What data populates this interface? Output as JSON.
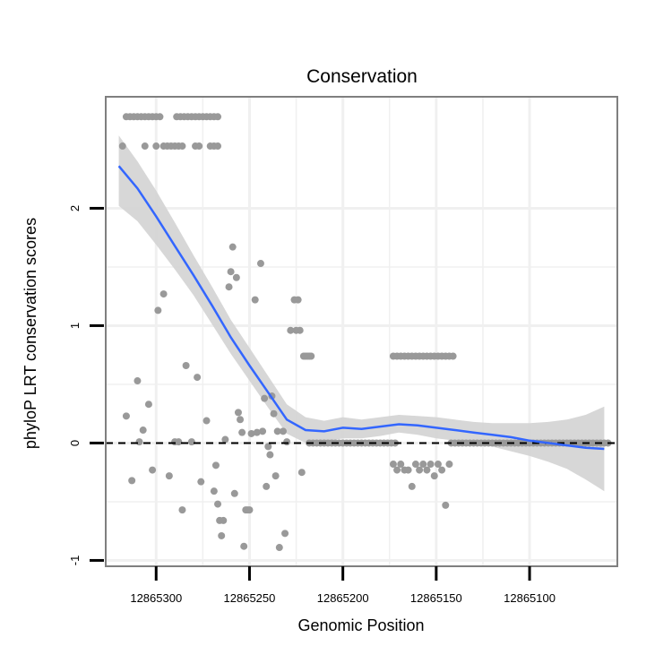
{
  "chart_data": {
    "type": "scatter",
    "title": "Conservation",
    "xlabel": "Genomic Position",
    "ylabel": "phyloP LRT conservation scores",
    "x_reversed": true,
    "xlim": [
      12865327,
      12865053
    ],
    "ylim": [
      -1.05,
      2.95
    ],
    "x_ticks": [
      12865300,
      12865250,
      12865200,
      12865150,
      12865100
    ],
    "x_tick_labels": [
      "12865300",
      "12865250",
      "12865200",
      "12865150",
      "12865100"
    ],
    "y_ticks": [
      -1,
      0,
      1,
      2
    ],
    "y_tick_labels": [
      "-1",
      "0",
      "1",
      "2"
    ],
    "grid": true,
    "reference_line": {
      "y": 0,
      "style": "dashed"
    },
    "colors": {
      "points": "#999999",
      "smooth": "#3366ff",
      "ribbon": "#d3d3d3",
      "panel_border": "#7f7f7f",
      "grid": "#f0f0f0"
    },
    "points": [
      {
        "x": 12865318,
        "y": 2.53
      },
      {
        "x": 12865316,
        "y": 2.78
      },
      {
        "x": 12865314,
        "y": 2.78
      },
      {
        "x": 12865312,
        "y": 2.78
      },
      {
        "x": 12865310,
        "y": 2.78
      },
      {
        "x": 12865308,
        "y": 2.78
      },
      {
        "x": 12865306,
        "y": 2.78
      },
      {
        "x": 12865304,
        "y": 2.78
      },
      {
        "x": 12865302,
        "y": 2.78
      },
      {
        "x": 12865300,
        "y": 2.78
      },
      {
        "x": 12865298,
        "y": 2.78
      },
      {
        "x": 12865306,
        "y": 2.53
      },
      {
        "x": 12865300,
        "y": 2.53
      },
      {
        "x": 12865296,
        "y": 2.53
      },
      {
        "x": 12865294,
        "y": 2.53
      },
      {
        "x": 12865292,
        "y": 2.53
      },
      {
        "x": 12865290,
        "y": 2.53
      },
      {
        "x": 12865288,
        "y": 2.53
      },
      {
        "x": 12865286,
        "y": 2.53
      },
      {
        "x": 12865289,
        "y": 2.78
      },
      {
        "x": 12865287,
        "y": 2.78
      },
      {
        "x": 12865285,
        "y": 2.78
      },
      {
        "x": 12865283,
        "y": 2.78
      },
      {
        "x": 12865281,
        "y": 2.78
      },
      {
        "x": 12865279,
        "y": 2.78
      },
      {
        "x": 12865277,
        "y": 2.78
      },
      {
        "x": 12865275,
        "y": 2.78
      },
      {
        "x": 12865273,
        "y": 2.78
      },
      {
        "x": 12865271,
        "y": 2.78
      },
      {
        "x": 12865269,
        "y": 2.78
      },
      {
        "x": 12865267,
        "y": 2.78
      },
      {
        "x": 12865279,
        "y": 2.53
      },
      {
        "x": 12865277,
        "y": 2.53
      },
      {
        "x": 12865271,
        "y": 2.53
      },
      {
        "x": 12865269,
        "y": 2.53
      },
      {
        "x": 12865267,
        "y": 2.53
      },
      {
        "x": 12865316,
        "y": 0.23
      },
      {
        "x": 12865313,
        "y": -0.32
      },
      {
        "x": 12865310,
        "y": 0.53
      },
      {
        "x": 12865309,
        "y": 0.01
      },
      {
        "x": 12865307,
        "y": 0.11
      },
      {
        "x": 12865304,
        "y": 0.33
      },
      {
        "x": 12865302,
        "y": -0.23
      },
      {
        "x": 12865299,
        "y": 1.13
      },
      {
        "x": 12865296,
        "y": 1.27
      },
      {
        "x": 12865293,
        "y": -0.28
      },
      {
        "x": 12865290,
        "y": 0.01
      },
      {
        "x": 12865288,
        "y": 0.01
      },
      {
        "x": 12865286,
        "y": -0.57
      },
      {
        "x": 12865284,
        "y": 0.66
      },
      {
        "x": 12865281,
        "y": 0.01
      },
      {
        "x": 12865278,
        "y": 0.56
      },
      {
        "x": 12865276,
        "y": -0.33
      },
      {
        "x": 12865273,
        "y": 0.19
      },
      {
        "x": 12865269,
        "y": -0.41
      },
      {
        "x": 12865268,
        "y": -0.19
      },
      {
        "x": 12865267,
        "y": -0.52
      },
      {
        "x": 12865266,
        "y": -0.66
      },
      {
        "x": 12865265,
        "y": -0.79
      },
      {
        "x": 12865264,
        "y": -0.66
      },
      {
        "x": 12865263,
        "y": 0.03
      },
      {
        "x": 12865261,
        "y": 1.33
      },
      {
        "x": 12865260,
        "y": 1.46
      },
      {
        "x": 12865259,
        "y": 1.67
      },
      {
        "x": 12865258,
        "y": -0.43
      },
      {
        "x": 12865257,
        "y": 1.41
      },
      {
        "x": 12865256,
        "y": 0.26
      },
      {
        "x": 12865255,
        "y": 0.2
      },
      {
        "x": 12865254,
        "y": 0.09
      },
      {
        "x": 12865253,
        "y": -0.88
      },
      {
        "x": 12865252,
        "y": -0.57
      },
      {
        "x": 12865251,
        "y": -0.57
      },
      {
        "x": 12865250,
        "y": -0.57
      },
      {
        "x": 12865249,
        "y": 0.08
      },
      {
        "x": 12865247,
        "y": 1.22
      },
      {
        "x": 12865246,
        "y": 0.09
      },
      {
        "x": 12865244,
        "y": 1.53
      },
      {
        "x": 12865243,
        "y": 0.1
      },
      {
        "x": 12865242,
        "y": 0.38
      },
      {
        "x": 12865241,
        "y": -0.37
      },
      {
        "x": 12865240,
        "y": -0.03
      },
      {
        "x": 12865239,
        "y": -0.1
      },
      {
        "x": 12865238,
        "y": 0.4
      },
      {
        "x": 12865237,
        "y": 0.25
      },
      {
        "x": 12865236,
        "y": -0.28
      },
      {
        "x": 12865235,
        "y": 0.1
      },
      {
        "x": 12865234,
        "y": -0.89
      },
      {
        "x": 12865232,
        "y": 0.1
      },
      {
        "x": 12865231,
        "y": -0.77
      },
      {
        "x": 12865230,
        "y": 0.01
      },
      {
        "x": 12865228,
        "y": 0.96
      },
      {
        "x": 12865226,
        "y": 1.22
      },
      {
        "x": 12865225,
        "y": 0.96
      },
      {
        "x": 12865224,
        "y": 1.22
      },
      {
        "x": 12865223,
        "y": 0.96
      },
      {
        "x": 12865222,
        "y": -0.25
      },
      {
        "x": 12865221,
        "y": 0.74
      },
      {
        "x": 12865220,
        "y": 0.74
      },
      {
        "x": 12865219,
        "y": 0.74
      },
      {
        "x": 12865218,
        "y": 0.74
      },
      {
        "x": 12865217,
        "y": 0.74
      },
      {
        "x": 12865173,
        "y": 0.74
      },
      {
        "x": 12865171,
        "y": 0.74
      },
      {
        "x": 12865169,
        "y": 0.74
      },
      {
        "x": 12865167,
        "y": 0.74
      },
      {
        "x": 12865165,
        "y": 0.74
      },
      {
        "x": 12865163,
        "y": 0.74
      },
      {
        "x": 12865161,
        "y": 0.74
      },
      {
        "x": 12865159,
        "y": 0.74
      },
      {
        "x": 12865157,
        "y": 0.74
      },
      {
        "x": 12865155,
        "y": 0.74
      },
      {
        "x": 12865153,
        "y": 0.74
      },
      {
        "x": 12865151,
        "y": 0.74
      },
      {
        "x": 12865149,
        "y": 0.74
      },
      {
        "x": 12865147,
        "y": 0.74
      },
      {
        "x": 12865145,
        "y": 0.74
      },
      {
        "x": 12865143,
        "y": 0.74
      },
      {
        "x": 12865141,
        "y": 0.74
      },
      {
        "x": 12865173,
        "y": -0.18
      },
      {
        "x": 12865171,
        "y": -0.23
      },
      {
        "x": 12865169,
        "y": -0.18
      },
      {
        "x": 12865167,
        "y": -0.23
      },
      {
        "x": 12865165,
        "y": -0.23
      },
      {
        "x": 12865163,
        "y": -0.37
      },
      {
        "x": 12865161,
        "y": -0.18
      },
      {
        "x": 12865159,
        "y": -0.23
      },
      {
        "x": 12865157,
        "y": -0.18
      },
      {
        "x": 12865155,
        "y": -0.23
      },
      {
        "x": 12865153,
        "y": -0.18
      },
      {
        "x": 12865151,
        "y": -0.28
      },
      {
        "x": 12865149,
        "y": -0.18
      },
      {
        "x": 12865147,
        "y": -0.23
      },
      {
        "x": 12865145,
        "y": -0.53
      },
      {
        "x": 12865143,
        "y": -0.18
      }
    ],
    "zero_runs": [
      {
        "x_from": 12865218,
        "x_to": 12865172,
        "y": 0.0,
        "step": 2
      },
      {
        "x_from": 12865142,
        "x_to": 12865058,
        "y": 0.0,
        "step": 2
      }
    ],
    "smooth_line": {
      "x": [
        12865320,
        12865310,
        12865300,
        12865290,
        12865280,
        12865270,
        12865260,
        12865250,
        12865240,
        12865230,
        12865220,
        12865210,
        12865200,
        12865190,
        12865180,
        12865170,
        12865160,
        12865150,
        12865140,
        12865130,
        12865120,
        12865110,
        12865100,
        12865090,
        12865080,
        12865070,
        12865060
      ],
      "y": [
        2.36,
        2.17,
        1.93,
        1.68,
        1.43,
        1.17,
        0.9,
        0.66,
        0.43,
        0.2,
        0.11,
        0.1,
        0.13,
        0.12,
        0.14,
        0.16,
        0.15,
        0.13,
        0.11,
        0.09,
        0.07,
        0.05,
        0.02,
        0.0,
        -0.02,
        -0.04,
        -0.05
      ],
      "se_lower": [
        2.02,
        1.89,
        1.69,
        1.48,
        1.26,
        1.01,
        0.76,
        0.53,
        0.3,
        0.08,
        0.0,
        0.01,
        0.04,
        0.04,
        0.06,
        0.09,
        0.07,
        0.04,
        0.02,
        0.0,
        -0.03,
        -0.07,
        -0.11,
        -0.16,
        -0.22,
        -0.31,
        -0.41
      ],
      "se_upper": [
        2.62,
        2.4,
        2.15,
        1.88,
        1.6,
        1.33,
        1.05,
        0.81,
        0.57,
        0.33,
        0.22,
        0.19,
        0.22,
        0.2,
        0.22,
        0.24,
        0.23,
        0.22,
        0.2,
        0.18,
        0.17,
        0.17,
        0.17,
        0.18,
        0.2,
        0.24,
        0.31
      ]
    }
  }
}
